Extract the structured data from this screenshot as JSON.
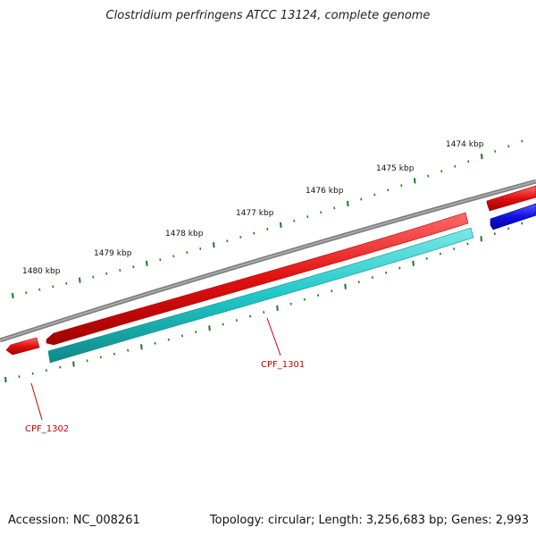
{
  "title": "Clostridium perfringens ATCC 13124, complete genome",
  "footer": {
    "accession": "Accession: NC_008261",
    "summary": "Topology: circular; Length: 3,256,683 bp; Genes: 2,993"
  },
  "colors": {
    "backbone": "#808080",
    "forward_gene": "#e01010",
    "reverse_gene": "#1010e0",
    "cds": "#20c8c8",
    "tick": "#1a7a1a",
    "label": "#cc0000"
  },
  "kbp_labels": [
    "1474 kbp",
    "1475 kbp",
    "1476 kbp",
    "1477 kbp",
    "1478 kbp",
    "1479 kbp",
    "1480 kbp"
  ],
  "genes": [
    {
      "name": "CPF_1301",
      "label": "CPF_1301"
    },
    {
      "name": "CPF_1302",
      "label": "CPF_1302"
    }
  ]
}
